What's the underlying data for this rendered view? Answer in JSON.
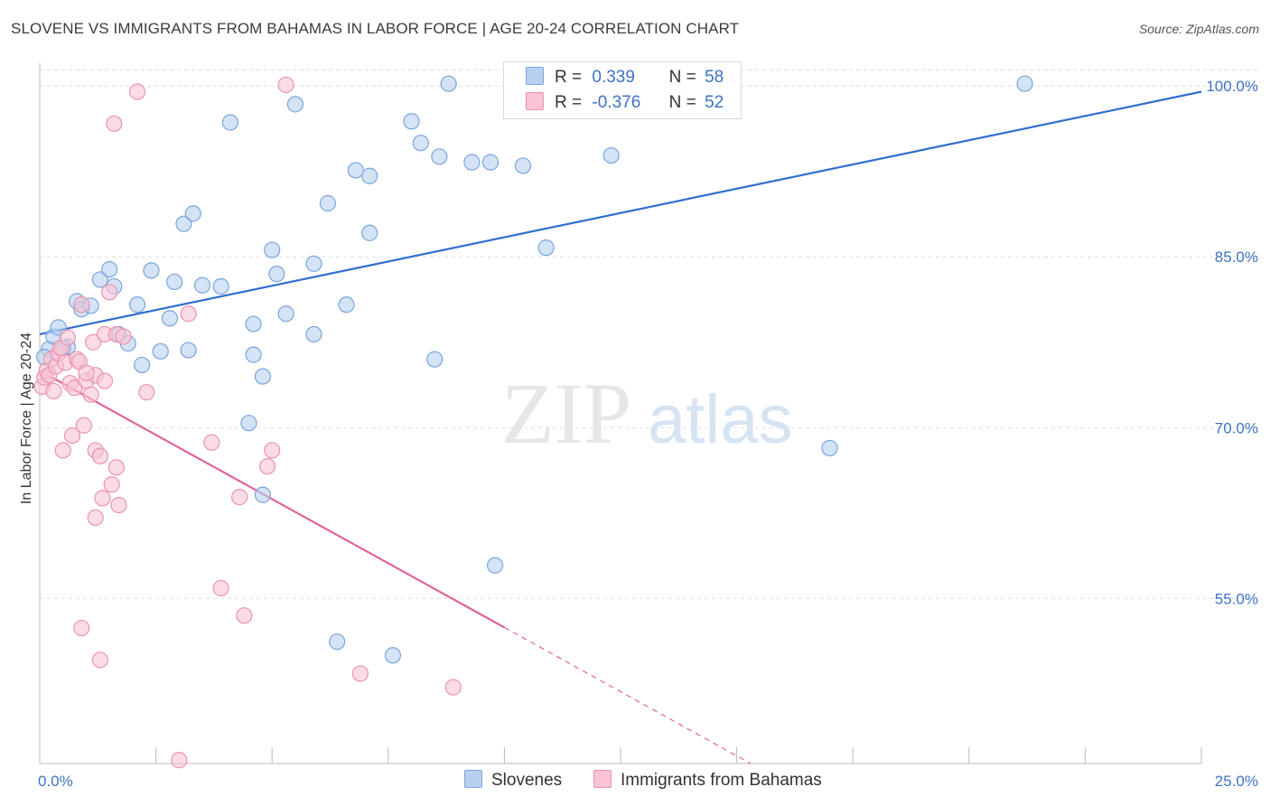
{
  "title": "SLOVENE VS IMMIGRANTS FROM BAHAMAS IN LABOR FORCE | AGE 20-24 CORRELATION CHART",
  "source": "Source: ZipAtlas.com",
  "watermark": {
    "zip": "ZIP",
    "atlas": "atlas"
  },
  "legend": {
    "rows": [
      {
        "r_label": "R =",
        "r_value": "0.339",
        "n_label": "N =",
        "n_value": "58"
      },
      {
        "r_label": "R =",
        "r_value": "-0.376",
        "n_label": "N =",
        "n_value": "52"
      }
    ]
  },
  "bottom_legend": [
    "Slovenes",
    "Immigrants from Bahamas"
  ],
  "colors": {
    "blue_fill": "#b8d0f0",
    "blue_stroke": "#7aa5dc",
    "blue_line": "#2f6fd0",
    "pink_fill": "#f8c4d4",
    "pink_stroke": "#ec93b0",
    "pink_line": "#e0649a",
    "tick_text": "#3d73c4",
    "grid": "#dedede"
  },
  "chart_data": {
    "type": "scatter",
    "title": "SLOVENE VS IMMIGRANTS FROM BAHAMAS IN LABOR FORCE | AGE 20-24 CORRELATION CHART",
    "xlabel": "",
    "ylabel": "In Labor Force | Age 20-24",
    "xlim": [
      0,
      25
    ],
    "ylim": [
      40.5,
      102
    ],
    "x_ticks": [
      {
        "value": 0,
        "label": "0.0%"
      },
      {
        "value": 25,
        "label": "25.0%"
      }
    ],
    "y_ticks": [
      {
        "value": 100,
        "label": "100.0%"
      },
      {
        "value": 85,
        "label": "85.0%"
      },
      {
        "value": 70,
        "label": "70.0%"
      },
      {
        "value": 55,
        "label": "55.0%"
      }
    ],
    "grid": true,
    "legend_position": "top-center",
    "series": [
      {
        "name": "Slovenes",
        "R": 0.339,
        "N": 58,
        "trend": {
          "x": [
            0,
            25
          ],
          "y": [
            78.2,
            99.5
          ],
          "dashed_from": null
        },
        "points": [
          [
            0.2,
            76.9
          ],
          [
            0.3,
            78.0
          ],
          [
            0.4,
            78.8
          ],
          [
            0.6,
            77.1
          ],
          [
            0.8,
            81.1
          ],
          [
            0.9,
            80.4
          ],
          [
            1.1,
            80.7
          ],
          [
            1.3,
            83.0
          ],
          [
            1.5,
            83.9
          ],
          [
            1.6,
            82.4
          ],
          [
            1.7,
            78.2
          ],
          [
            1.9,
            77.4
          ],
          [
            2.1,
            80.8
          ],
          [
            2.2,
            75.5
          ],
          [
            2.4,
            83.8
          ],
          [
            2.6,
            76.7
          ],
          [
            2.8,
            79.6
          ],
          [
            2.9,
            82.8
          ],
          [
            3.1,
            87.9
          ],
          [
            3.3,
            88.8
          ],
          [
            3.2,
            76.8
          ],
          [
            3.5,
            82.5
          ],
          [
            3.9,
            82.4
          ],
          [
            4.1,
            96.8
          ],
          [
            4.6,
            76.4
          ],
          [
            4.6,
            79.1
          ],
          [
            4.8,
            64.1
          ],
          [
            4.5,
            70.4
          ],
          [
            4.8,
            74.5
          ],
          [
            5.0,
            85.6
          ],
          [
            5.1,
            83.5
          ],
          [
            5.3,
            80.0
          ],
          [
            5.5,
            98.4
          ],
          [
            5.9,
            78.2
          ],
          [
            5.9,
            84.4
          ],
          [
            6.2,
            89.7
          ],
          [
            6.4,
            51.2
          ],
          [
            6.6,
            80.8
          ],
          [
            6.8,
            92.6
          ],
          [
            7.1,
            92.1
          ],
          [
            7.1,
            87.1
          ],
          [
            7.6,
            50.0
          ],
          [
            8.0,
            96.9
          ],
          [
            8.2,
            95.0
          ],
          [
            8.5,
            76.0
          ],
          [
            8.6,
            93.8
          ],
          [
            8.8,
            100.2
          ],
          [
            9.3,
            93.3
          ],
          [
            9.7,
            93.3
          ],
          [
            9.8,
            57.9
          ],
          [
            10.4,
            93.0
          ],
          [
            10.9,
            85.8
          ],
          [
            12.3,
            93.9
          ],
          [
            13.8,
            100.2
          ],
          [
            17.0,
            68.2
          ],
          [
            21.2,
            100.2
          ],
          [
            0.1,
            76.2
          ],
          [
            0.5,
            77.0
          ]
        ]
      },
      {
        "name": "Immigrants from Bahamas",
        "R": -0.376,
        "N": 52,
        "trend": {
          "x": [
            0,
            15.3
          ],
          "y": [
            75.0,
            40.5
          ],
          "dashed_from": 10.0
        },
        "points": [
          [
            0.05,
            73.6
          ],
          [
            0.1,
            74.4
          ],
          [
            0.15,
            75.0
          ],
          [
            0.2,
            74.6
          ],
          [
            0.25,
            76.0
          ],
          [
            0.3,
            73.2
          ],
          [
            0.35,
            75.4
          ],
          [
            0.4,
            76.5
          ],
          [
            0.45,
            77.0
          ],
          [
            0.5,
            68.0
          ],
          [
            0.55,
            75.7
          ],
          [
            0.6,
            77.9
          ],
          [
            0.65,
            73.9
          ],
          [
            0.7,
            69.3
          ],
          [
            0.75,
            73.5
          ],
          [
            0.8,
            76.0
          ],
          [
            0.85,
            75.8
          ],
          [
            0.9,
            80.8
          ],
          [
            0.95,
            70.2
          ],
          [
            1.0,
            74.1
          ],
          [
            1.1,
            72.9
          ],
          [
            1.15,
            77.5
          ],
          [
            1.2,
            74.6
          ],
          [
            1.2,
            62.1
          ],
          [
            1.3,
            49.6
          ],
          [
            1.4,
            74.1
          ],
          [
            1.2,
            68.0
          ],
          [
            1.3,
            67.5
          ],
          [
            1.35,
            63.8
          ],
          [
            1.4,
            78.2
          ],
          [
            1.5,
            81.9
          ],
          [
            1.55,
            65.0
          ],
          [
            1.6,
            96.7
          ],
          [
            1.65,
            78.2
          ],
          [
            1.65,
            66.5
          ],
          [
            1.7,
            63.2
          ],
          [
            1.8,
            78.0
          ],
          [
            2.1,
            99.5
          ],
          [
            2.3,
            73.1
          ],
          [
            0.9,
            52.4
          ],
          [
            3.0,
            40.8
          ],
          [
            3.2,
            80.0
          ],
          [
            3.7,
            68.7
          ],
          [
            3.9,
            55.9
          ],
          [
            4.3,
            63.9
          ],
          [
            4.4,
            53.5
          ],
          [
            4.9,
            66.6
          ],
          [
            5.0,
            68.0
          ],
          [
            5.3,
            100.1
          ],
          [
            6.9,
            48.4
          ],
          [
            8.9,
            47.2
          ],
          [
            1.0,
            74.8
          ]
        ]
      }
    ]
  }
}
